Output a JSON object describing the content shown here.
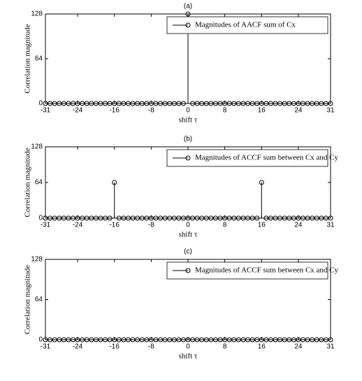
{
  "chart_data": [
    {
      "type": "stem",
      "title": "(a)",
      "xlabel": "shift τ",
      "ylabel": "Correlation magnitude",
      "x": [
        -31,
        -30,
        -29,
        -28,
        -27,
        -26,
        -25,
        -24,
        -23,
        -22,
        -21,
        -20,
        -19,
        -18,
        -17,
        -16,
        -15,
        -14,
        -13,
        -12,
        -11,
        -10,
        -9,
        -8,
        -7,
        -6,
        -5,
        -4,
        -3,
        -2,
        -1,
        0,
        1,
        2,
        3,
        4,
        5,
        6,
        7,
        8,
        9,
        10,
        11,
        12,
        13,
        14,
        15,
        16,
        17,
        18,
        19,
        20,
        21,
        22,
        23,
        24,
        25,
        26,
        27,
        28,
        29,
        30,
        31
      ],
      "series": [
        {
          "name": "Magnitudes of AACF sum of Cx",
          "color": "#000000",
          "values": [
            0,
            0,
            0,
            0,
            0,
            0,
            0,
            0,
            0,
            0,
            0,
            0,
            0,
            0,
            0,
            0,
            0,
            0,
            0,
            0,
            0,
            0,
            0,
            0,
            0,
            0,
            0,
            0,
            0,
            0,
            0,
            128,
            0,
            0,
            0,
            0,
            0,
            0,
            0,
            0,
            0,
            0,
            0,
            0,
            0,
            0,
            0,
            0,
            0,
            0,
            0,
            0,
            0,
            0,
            0,
            0,
            0,
            0,
            0,
            0,
            0,
            0,
            0
          ]
        }
      ],
      "xlim": [
        -31,
        31
      ],
      "xticks": [
        -31,
        -24,
        -16,
        -8,
        0,
        8,
        16,
        24,
        31
      ],
      "ylim": [
        0,
        128
      ],
      "yticks": [
        0,
        64,
        128
      ],
      "legend": "upper right"
    },
    {
      "type": "stem",
      "title": "(b)",
      "xlabel": "shift τ",
      "ylabel": "Correlation magnitude",
      "x": [
        -31,
        -30,
        -29,
        -28,
        -27,
        -26,
        -25,
        -24,
        -23,
        -22,
        -21,
        -20,
        -19,
        -18,
        -17,
        -16,
        -15,
        -14,
        -13,
        -12,
        -11,
        -10,
        -9,
        -8,
        -7,
        -6,
        -5,
        -4,
        -3,
        -2,
        -1,
        0,
        1,
        2,
        3,
        4,
        5,
        6,
        7,
        8,
        9,
        10,
        11,
        12,
        13,
        14,
        15,
        16,
        17,
        18,
        19,
        20,
        21,
        22,
        23,
        24,
        25,
        26,
        27,
        28,
        29,
        30,
        31
      ],
      "series": [
        {
          "name": "Magnitudes of ACCF sum between Cx and Cy",
          "color": "#000000",
          "values": [
            0,
            0,
            0,
            0,
            0,
            0,
            0,
            0,
            0,
            0,
            0,
            0,
            0,
            0,
            0,
            64,
            0,
            0,
            0,
            0,
            0,
            0,
            0,
            0,
            0,
            0,
            0,
            0,
            0,
            0,
            0,
            0,
            0,
            0,
            0,
            0,
            0,
            0,
            0,
            0,
            0,
            0,
            0,
            0,
            0,
            0,
            0,
            64,
            0,
            0,
            0,
            0,
            0,
            0,
            0,
            0,
            0,
            0,
            0,
            0,
            0,
            0,
            0
          ]
        }
      ],
      "xlim": [
        -31,
        31
      ],
      "xticks": [
        -31,
        -24,
        -16,
        -8,
        0,
        8,
        16,
        24,
        31
      ],
      "ylim": [
        0,
        128
      ],
      "yticks": [
        0,
        64,
        128
      ],
      "legend": "upper right"
    },
    {
      "type": "stem",
      "title": "(c)",
      "xlabel": "shift τ",
      "ylabel": "Correlation magnitude",
      "x": [
        -31,
        -30,
        -29,
        -28,
        -27,
        -26,
        -25,
        -24,
        -23,
        -22,
        -21,
        -20,
        -19,
        -18,
        -17,
        -16,
        -15,
        -14,
        -13,
        -12,
        -11,
        -10,
        -9,
        -8,
        -7,
        -6,
        -5,
        -4,
        -3,
        -2,
        -1,
        0,
        1,
        2,
        3,
        4,
        5,
        6,
        7,
        8,
        9,
        10,
        11,
        12,
        13,
        14,
        15,
        16,
        17,
        18,
        19,
        20,
        21,
        22,
        23,
        24,
        25,
        26,
        27,
        28,
        29,
        30,
        31
      ],
      "series": [
        {
          "name": "Magnitudes of ACCF sum between Cx and Cy",
          "color": "#000000",
          "values": [
            0,
            0,
            0,
            0,
            0,
            0,
            0,
            0,
            0,
            0,
            0,
            0,
            0,
            0,
            0,
            0,
            0,
            0,
            0,
            0,
            0,
            0,
            0,
            0,
            0,
            0,
            0,
            0,
            0,
            0,
            0,
            0,
            0,
            0,
            0,
            0,
            0,
            0,
            0,
            0,
            0,
            0,
            0,
            0,
            0,
            0,
            0,
            0,
            0,
            0,
            0,
            0,
            0,
            0,
            0,
            0,
            0,
            0,
            0,
            0,
            0,
            0,
            0
          ]
        }
      ],
      "xlim": [
        -31,
        31
      ],
      "xticks": [
        -31,
        -24,
        -16,
        -8,
        0,
        8,
        16,
        24,
        31
      ],
      "ylim": [
        0,
        128
      ],
      "yticks": [
        0,
        64,
        128
      ],
      "legend": "upper right"
    }
  ]
}
